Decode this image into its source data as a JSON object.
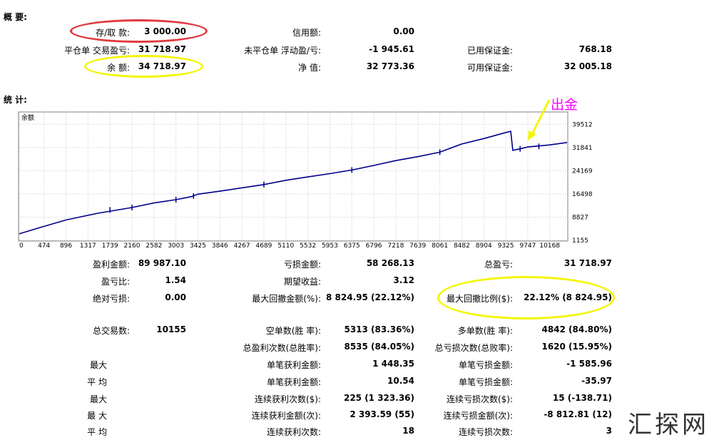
{
  "summary": {
    "title": "概 要:",
    "deposit_label": "存/取 款:",
    "deposit_value": "3 000.00",
    "credit_label": "信用额:",
    "credit_value": "0.00",
    "closed_pl_label": "平仓单 交易盈亏:",
    "closed_pl_value": "31 718.97",
    "floating_pl_label": "未平仓单 浮动盈/亏:",
    "floating_pl_value": "-1 945.61",
    "margin_label": "已用保证金:",
    "margin_value": "768.18",
    "balance_label": "余 额:",
    "balance_value": "34 718.97",
    "equity_label": "净 值:",
    "equity_value": "32 773.36",
    "free_margin_label": "可用保证金:",
    "free_margin_value": "32 005.18"
  },
  "stats_title": "统 计:",
  "annotation": {
    "text": "出金",
    "color": "#ff00ff"
  },
  "chart_data": {
    "type": "line",
    "title": "余额",
    "series_color": "#00008b",
    "x_ticks": [
      "0",
      "474",
      "896",
      "1317",
      "1739",
      "2160",
      "2582",
      "3003",
      "3425",
      "3846",
      "4267",
      "4689",
      "5110",
      "5532",
      "5953",
      "6375",
      "6796",
      "7218",
      "7639",
      "8061",
      "8482",
      "8904",
      "9325",
      "9747",
      "10168"
    ],
    "y_ticks": [
      "39512",
      "31841",
      "24169",
      "16498",
      "8827",
      "1155"
    ],
    "ylim": [
      1155,
      43350
    ],
    "xlim": [
      0,
      10500
    ],
    "series": [
      {
        "x": [
          0,
          400,
          900,
          1500,
          2160,
          2582,
          3003,
          3300,
          3425,
          3846,
          4267,
          4689,
          5110,
          5532,
          5953,
          6375,
          6796,
          7218,
          7639,
          8061,
          8482,
          8904,
          9325,
          9420,
          9460,
          9600,
          9747,
          10168,
          10500
        ],
        "y": [
          3300,
          5400,
          7900,
          10100,
          12000,
          13500,
          14600,
          15600,
          16400,
          17400,
          18500,
          19600,
          21000,
          22100,
          23200,
          24400,
          25900,
          27500,
          28800,
          30300,
          33000,
          34800,
          36800,
          37200,
          30900,
          31400,
          32000,
          32700,
          33500
        ]
      }
    ],
    "spikes": [
      {
        "x": 1739,
        "y": 11200
      },
      {
        "x": 2160,
        "y": 12000
      },
      {
        "x": 3003,
        "y": 14600
      },
      {
        "x": 3340,
        "y": 15800
      },
      {
        "x": 4689,
        "y": 19600
      },
      {
        "x": 6375,
        "y": 24400
      },
      {
        "x": 8061,
        "y": 30300
      },
      {
        "x": 9600,
        "y": 31400
      },
      {
        "x": 9960,
        "y": 32200
      }
    ],
    "grid": true
  },
  "stats": {
    "gross_profit_label": "盈利金额:",
    "gross_profit_value": "89 987.10",
    "gross_loss_label": "亏损金额:",
    "gross_loss_value": "58 268.13",
    "net_profit_label": "总盈亏:",
    "net_profit_value": "31 718.97",
    "profit_factor_label": "盈亏比:",
    "profit_factor_value": "1.54",
    "expected_payoff_label": "期望收益:",
    "expected_payoff_value": "3.12",
    "abs_drawdown_label": "绝对亏损:",
    "abs_drawdown_value": "0.00",
    "max_dd_label": "最大回撤金额(%):",
    "max_dd_value": "8 824.95 (22.12%)",
    "rel_dd_label": "最大回撤比例($):",
    "rel_dd_value": "22.12% (8 824.95)",
    "total_trades_label": "总交易数:",
    "total_trades_value": "10155",
    "short_label": "空单数(胜 率):",
    "short_value": "5313 (83.36%)",
    "long_label": "多单数(胜 率):",
    "long_value": "4842 (84.80%)",
    "win_trades_label": "总盈利次数(总胜率):",
    "win_trades_value": "8535 (84.05%)",
    "loss_trades_label": "总亏损次数(总败率):",
    "loss_trades_value": "1620 (15.95%)",
    "row_largest": "最大",
    "largest_profit_label": "单笔获利金额:",
    "largest_profit_value": "1 448.35",
    "largest_loss_label": "单笔亏损金额:",
    "largest_loss_value": "-1 585.96",
    "row_average": "平 均",
    "avg_profit_label": "单笔获利金额:",
    "avg_profit_value": "10.54",
    "avg_loss_label": "单笔亏损金额:",
    "avg_loss_value": "-35.97",
    "row_max1": "最大",
    "max_cons_wins_label": "连续获利次数($):",
    "max_cons_wins_value": "225 (1 323.36)",
    "max_cons_losses_label": "连续亏损次数($):",
    "max_cons_losses_value": "15 (-138.71)",
    "row_max2": "最 大",
    "max_cons_profit_label": "连续获利金额(次):",
    "max_cons_profit_value": "2 393.59 (55)",
    "max_cons_loss_label": "连续亏损金额(次):",
    "max_cons_loss_value": "-8 812.81 (12)",
    "row_avg2": "平 均",
    "avg_cons_wins_label": "连续获利次数:",
    "avg_cons_wins_value": "18",
    "avg_cons_losses_label": "连续亏损次数:",
    "avg_cons_losses_value": "3"
  },
  "watermark": "汇探网",
  "highlight_colors": {
    "red": "#e0393e",
    "yellow": "#f5f500"
  }
}
